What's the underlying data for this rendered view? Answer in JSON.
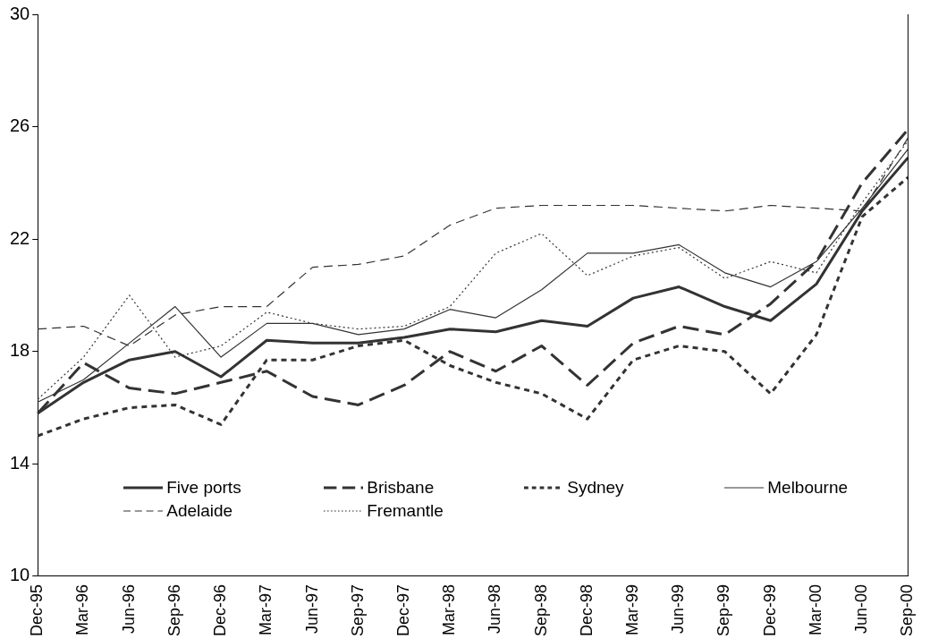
{
  "chart_data": {
    "type": "line",
    "categories": [
      "Dec-95",
      "Mar-96",
      "Jun-96",
      "Sep-96",
      "Dec-96",
      "Mar-97",
      "Jun-97",
      "Sep-97",
      "Dec-97",
      "Mar-98",
      "Jun-98",
      "Sep-98",
      "Dec-98",
      "Mar-99",
      "Jun-99",
      "Sep-99",
      "Dec-99",
      "Mar-00",
      "Jun-00",
      "Sep-00"
    ],
    "series": [
      {
        "name": "Five ports",
        "color": "#333333",
        "line_style": "solid",
        "values": [
          15.8,
          16.9,
          17.7,
          18.0,
          17.1,
          18.4,
          18.3,
          18.3,
          18.5,
          18.8,
          18.7,
          19.1,
          18.9,
          19.9,
          20.3,
          19.6,
          19.1,
          20.4,
          23.0,
          24.9
        ]
      },
      {
        "name": "Brisbane",
        "color": "#333333",
        "line_style": "dashed",
        "values": [
          15.8,
          17.6,
          16.7,
          16.5,
          16.9,
          17.3,
          16.4,
          16.1,
          16.8,
          18.0,
          17.3,
          18.2,
          16.8,
          18.3,
          18.9,
          18.6,
          19.7,
          21.2,
          24.0,
          25.9
        ]
      },
      {
        "name": "Sydney",
        "color": "#333333",
        "line_style": "dashed",
        "values": [
          15.0,
          15.6,
          16.0,
          16.1,
          15.4,
          17.7,
          17.7,
          18.2,
          18.4,
          17.5,
          16.9,
          16.5,
          15.6,
          17.7,
          18.2,
          18.0,
          16.5,
          18.6,
          22.8,
          24.2
        ]
      },
      {
        "name": "Melbourne",
        "color": "#333333",
        "line_style": "solid",
        "values": [
          16.2,
          17.0,
          18.3,
          19.6,
          17.8,
          19.0,
          19.0,
          18.6,
          18.8,
          19.5,
          19.2,
          20.2,
          21.5,
          21.5,
          21.8,
          20.8,
          20.3,
          21.2,
          23.1,
          25.2
        ]
      },
      {
        "name": "Adelaide",
        "color": "#333333",
        "line_style": "dashed",
        "values": [
          18.8,
          18.9,
          18.2,
          19.3,
          19.6,
          19.6,
          21.0,
          21.1,
          21.4,
          22.5,
          23.1,
          23.2,
          23.2,
          23.2,
          23.1,
          23.0,
          23.2,
          23.1,
          23.0,
          25.6
        ]
      },
      {
        "name": "Fremantle",
        "color": "#333333",
        "line_style": "dotted",
        "values": [
          16.3,
          17.8,
          20.0,
          17.8,
          18.2,
          19.4,
          19.0,
          18.8,
          18.9,
          19.6,
          21.5,
          22.2,
          20.7,
          21.4,
          21.7,
          20.6,
          21.2,
          20.8,
          23.3,
          25.5
        ]
      }
    ],
    "ylim": [
      10,
      30
    ],
    "yticks": [
      10,
      14,
      18,
      22,
      26,
      30
    ],
    "grid": false,
    "legend": "bottom left",
    "marker": "none"
  }
}
